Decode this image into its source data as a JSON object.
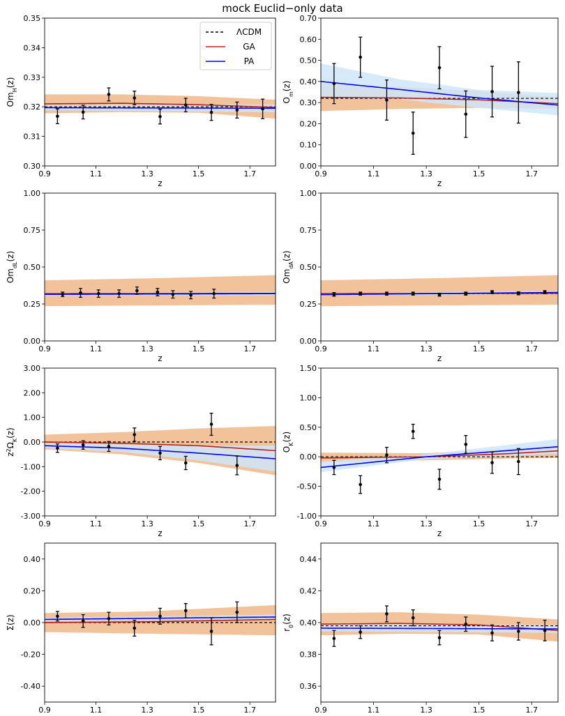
{
  "title": "mock Euclid−only data",
  "legend": {
    "location": "upper-right of first panel",
    "entries": [
      "ΛCDM",
      "GA",
      "PA"
    ]
  },
  "colors": {
    "lcdm": "#000000",
    "ga": "#b22222",
    "pa": "#0000ee",
    "ga_band": "#f0b98a",
    "pa_band": "#cfe6f8",
    "points": "#000000"
  },
  "chart_data": [
    {
      "type": "line",
      "id": "omH",
      "ylabel_html": "Om<tspan baseline-shift=\"sub\" font-size=\"8\">H</tspan>(z)",
      "ylabel": "Om_H(z)",
      "xlabel": "z",
      "xlim": [
        0.9,
        1.8
      ],
      "ylim": [
        0.3,
        0.35
      ],
      "xticks": [
        0.9,
        1.1,
        1.3,
        1.5,
        1.7
      ],
      "xtick_labels": [
        "0.9",
        "1.1",
        "1.3",
        "1.5",
        "1.7"
      ],
      "yticks": [
        0.3,
        0.31,
        0.32,
        0.33,
        0.34,
        0.35
      ],
      "ytick_labels": [
        "0.30",
        "0.31",
        "0.32",
        "0.33",
        "0.34",
        "0.35"
      ],
      "lcdm": 0.32,
      "ga": [
        [
          0.9,
          0.321
        ],
        [
          1.2,
          0.3212
        ],
        [
          1.5,
          0.3207
        ],
        [
          1.8,
          0.3198
        ]
      ],
      "ga_band": [
        [
          0.9,
          0.3178,
          0.3242
        ],
        [
          1.2,
          0.3182,
          0.3242
        ],
        [
          1.5,
          0.318,
          0.3236
        ],
        [
          1.8,
          0.316,
          0.3224
        ]
      ],
      "pa": [
        [
          0.9,
          0.3197
        ],
        [
          1.8,
          0.3195
        ]
      ],
      "pa_band": [
        [
          0.9,
          0.3188,
          0.3206
        ],
        [
          1.8,
          0.3182,
          0.3208
        ]
      ],
      "points": [
        [
          0.95,
          0.3168,
          0.0025
        ],
        [
          1.05,
          0.3182,
          0.0023
        ],
        [
          1.15,
          0.3242,
          0.0022
        ],
        [
          1.25,
          0.323,
          0.0023
        ],
        [
          1.35,
          0.3167,
          0.0025
        ],
        [
          1.45,
          0.3206,
          0.0023
        ],
        [
          1.55,
          0.3181,
          0.0027
        ],
        [
          1.65,
          0.3189,
          0.0027
        ],
        [
          1.75,
          0.3193,
          0.0033
        ]
      ]
    },
    {
      "type": "line",
      "id": "om",
      "ylabel_html": "O<tspan baseline-shift=\"sub\" font-size=\"8\">m</tspan>(z)",
      "ylabel": "O_m(z)",
      "xlabel": "z",
      "xlim": [
        0.9,
        1.8
      ],
      "ylim": [
        0.0,
        0.7
      ],
      "xticks": [
        0.9,
        1.1,
        1.3,
        1.5,
        1.7
      ],
      "xtick_labels": [
        "0.9",
        "1.1",
        "1.3",
        "1.5",
        "1.7"
      ],
      "yticks": [
        0.0,
        0.1,
        0.2,
        0.3,
        0.4,
        0.5,
        0.6,
        0.7
      ],
      "ytick_labels": [
        "0.00",
        "0.10",
        "0.20",
        "0.30",
        "0.40",
        "0.50",
        "0.60",
        "0.70"
      ],
      "lcdm": 0.32,
      "ga": [
        [
          0.9,
          0.325
        ],
        [
          1.2,
          0.322
        ],
        [
          1.5,
          0.313
        ],
        [
          1.8,
          0.295
        ]
      ],
      "ga_band": [
        [
          0.9,
          0.26,
          0.39
        ],
        [
          1.2,
          0.27,
          0.375
        ],
        [
          1.5,
          0.275,
          0.355
        ],
        [
          1.8,
          0.27,
          0.325
        ]
      ],
      "pa": [
        [
          0.9,
          0.4
        ],
        [
          1.2,
          0.362
        ],
        [
          1.5,
          0.322
        ],
        [
          1.8,
          0.288
        ]
      ],
      "pa_band": [
        [
          0.9,
          0.32,
          0.485
        ],
        [
          1.2,
          0.315,
          0.41
        ],
        [
          1.5,
          0.275,
          0.36
        ],
        [
          1.8,
          0.24,
          0.345
        ]
      ],
      "points": [
        [
          0.95,
          0.39,
          0.095
        ],
        [
          1.05,
          0.515,
          0.095
        ],
        [
          1.15,
          0.312,
          0.095
        ],
        [
          1.25,
          0.155,
          0.1
        ],
        [
          1.35,
          0.465,
          0.1
        ],
        [
          1.45,
          0.245,
          0.11
        ],
        [
          1.55,
          0.352,
          0.12
        ],
        [
          1.65,
          0.348,
          0.145
        ]
      ]
    },
    {
      "type": "line",
      "id": "omdL",
      "ylabel_html": "Om<tspan baseline-shift=\"sub\" font-size=\"8\">dL</tspan>(z)",
      "ylabel": "Om_dL(z)",
      "xlabel": "z",
      "xlim": [
        0.9,
        1.8
      ],
      "ylim": [
        0.0,
        1.0
      ],
      "xticks": [
        0.9,
        1.1,
        1.3,
        1.5,
        1.7
      ],
      "xtick_labels": [
        "0.9",
        "1.1",
        "1.3",
        "1.5",
        "1.7"
      ],
      "yticks": [
        0.0,
        0.25,
        0.5,
        0.75,
        1.0
      ],
      "ytick_labels": [
        "0.00",
        "0.25",
        "0.50",
        "0.75",
        "1.00"
      ],
      "lcdm": 0.32,
      "ga": [
        [
          0.9,
          0.32
        ],
        [
          1.8,
          0.322
        ]
      ],
      "ga_band": [
        [
          0.9,
          0.235,
          0.41
        ],
        [
          1.35,
          0.24,
          0.425
        ],
        [
          1.8,
          0.245,
          0.445
        ]
      ],
      "pa": [
        [
          0.9,
          0.315
        ],
        [
          1.8,
          0.32
        ]
      ],
      "pa_band": [
        [
          0.9,
          0.305,
          0.325
        ],
        [
          1.8,
          0.308,
          0.332
        ]
      ],
      "points": [
        [
          0.97,
          0.315,
          0.015
        ],
        [
          1.04,
          0.325,
          0.03
        ],
        [
          1.11,
          0.32,
          0.025
        ],
        [
          1.19,
          0.32,
          0.025
        ],
        [
          1.26,
          0.34,
          0.025
        ],
        [
          1.34,
          0.33,
          0.025
        ],
        [
          1.4,
          0.315,
          0.025
        ],
        [
          1.47,
          0.31,
          0.025
        ],
        [
          1.56,
          0.32,
          0.03
        ]
      ]
    },
    {
      "type": "line",
      "id": "omdA",
      "ylabel_html": "Om<tspan baseline-shift=\"sub\" font-size=\"8\">dA</tspan>(z)",
      "ylabel": "Om_dA(z)",
      "xlabel": "z",
      "xlim": [
        0.9,
        1.8
      ],
      "ylim": [
        0.0,
        1.0
      ],
      "xticks": [
        0.9,
        1.1,
        1.3,
        1.5,
        1.7
      ],
      "xtick_labels": [
        "0.9",
        "1.1",
        "1.3",
        "1.5",
        "1.7"
      ],
      "yticks": [
        0.0,
        0.25,
        0.5,
        0.75,
        1.0
      ],
      "ytick_labels": [
        "0.00",
        "0.25",
        "0.50",
        "0.75",
        "1.00"
      ],
      "lcdm": 0.32,
      "ga": [
        [
          0.9,
          0.32
        ],
        [
          1.8,
          0.322
        ]
      ],
      "ga_band": [
        [
          0.9,
          0.235,
          0.41
        ],
        [
          1.35,
          0.24,
          0.425
        ],
        [
          1.8,
          0.245,
          0.445
        ]
      ],
      "pa": [
        [
          0.9,
          0.313
        ],
        [
          1.8,
          0.328
        ]
      ],
      "pa_band": [
        [
          0.9,
          0.305,
          0.322
        ],
        [
          1.8,
          0.318,
          0.338
        ]
      ],
      "points": [
        [
          0.95,
          0.315,
          0.012
        ],
        [
          1.05,
          0.32,
          0.01
        ],
        [
          1.15,
          0.32,
          0.01
        ],
        [
          1.25,
          0.32,
          0.01
        ],
        [
          1.35,
          0.313,
          0.01
        ],
        [
          1.45,
          0.32,
          0.01
        ],
        [
          1.55,
          0.33,
          0.01
        ],
        [
          1.65,
          0.322,
          0.01
        ],
        [
          1.75,
          0.33,
          0.01
        ]
      ]
    },
    {
      "type": "line",
      "id": "z2ok",
      "ylabel_html": "z<tspan baseline-shift=\"super\" font-size=\"8\">2</tspan>Ω<tspan baseline-shift=\"sub\" font-size=\"8\">K</tspan>(z)",
      "ylabel": "z^2 Ω_K(z)",
      "xlabel": "z",
      "xlim": [
        0.9,
        1.8
      ],
      "ylim": [
        -3.0,
        3.0
      ],
      "xticks": [
        0.9,
        1.1,
        1.3,
        1.5,
        1.7
      ],
      "xtick_labels": [
        "0.9",
        "1.1",
        "1.3",
        "1.5",
        "1.7"
      ],
      "yticks": [
        -3,
        -2,
        -1,
        0,
        1,
        2,
        3
      ],
      "ytick_labels": [
        "-3.00",
        "-2.00",
        "-1.00",
        "0.00",
        "1.00",
        "2.00",
        "3.00"
      ],
      "lcdm": 0.0,
      "ga": [
        [
          0.9,
          0.0
        ],
        [
          1.2,
          -0.05
        ],
        [
          1.5,
          -0.15
        ],
        [
          1.8,
          -0.35
        ]
      ],
      "ga_band": [
        [
          0.9,
          -0.3,
          0.3
        ],
        [
          1.2,
          -0.5,
          0.4
        ],
        [
          1.5,
          -0.85,
          0.55
        ],
        [
          1.8,
          -1.35,
          0.65
        ]
      ],
      "pa": [
        [
          0.9,
          -0.15
        ],
        [
          1.2,
          -0.25
        ],
        [
          1.5,
          -0.45
        ],
        [
          1.8,
          -0.68
        ]
      ],
      "pa_band": [
        [
          0.9,
          -0.25,
          -0.05
        ],
        [
          1.2,
          -0.4,
          -0.1
        ],
        [
          1.5,
          -0.75,
          -0.15
        ],
        [
          1.8,
          -1.2,
          -0.15
        ]
      ],
      "points": [
        [
          0.95,
          -0.25,
          0.17
        ],
        [
          1.05,
          -0.12,
          0.17
        ],
        [
          1.15,
          -0.18,
          0.2
        ],
        [
          1.25,
          0.3,
          0.27
        ],
        [
          1.35,
          -0.45,
          0.27
        ],
        [
          1.45,
          -0.85,
          0.27
        ],
        [
          1.55,
          0.72,
          0.45
        ],
        [
          1.65,
          -0.95,
          0.38
        ]
      ]
    },
    {
      "type": "line",
      "id": "ok",
      "ylabel_html": "O<tspan baseline-shift=\"sub\" font-size=\"8\">K</tspan>(z)",
      "ylabel": "O_K(z)",
      "xlabel": "z",
      "xlim": [
        0.9,
        1.8
      ],
      "ylim": [
        -1.0,
        1.5
      ],
      "xticks": [
        0.9,
        1.1,
        1.3,
        1.5,
        1.7
      ],
      "xtick_labels": [
        "0.9",
        "1.1",
        "1.3",
        "1.5",
        "1.7"
      ],
      "yticks": [
        -1.0,
        -0.5,
        0.0,
        0.5,
        1.0,
        1.5
      ],
      "ytick_labels": [
        "-1.00",
        "-0.50",
        "0.00",
        "0.50",
        "1.00",
        "1.50"
      ],
      "lcdm": 0.0,
      "ga": [
        [
          0.9,
          -0.02
        ],
        [
          1.3,
          0.0
        ],
        [
          1.6,
          0.05
        ],
        [
          1.8,
          0.1
        ]
      ],
      "ga_band": [
        [
          0.9,
          -0.1,
          0.07
        ],
        [
          1.3,
          -0.06,
          0.06
        ],
        [
          1.6,
          -0.03,
          0.13
        ],
        [
          1.8,
          -0.02,
          0.19
        ]
      ],
      "pa": [
        [
          0.9,
          -0.18
        ],
        [
          1.3,
          0.0
        ],
        [
          1.8,
          0.17
        ]
      ],
      "pa_band": [
        [
          0.9,
          -0.26,
          -0.08
        ],
        [
          1.3,
          -0.04,
          0.04
        ],
        [
          1.8,
          0.05,
          0.3
        ]
      ],
      "points": [
        [
          0.95,
          -0.18,
          0.12
        ],
        [
          1.05,
          -0.47,
          0.15
        ],
        [
          1.15,
          0.03,
          0.13
        ],
        [
          1.25,
          0.43,
          0.12
        ],
        [
          1.35,
          -0.38,
          0.17
        ],
        [
          1.45,
          0.21,
          0.15
        ],
        [
          1.55,
          -0.1,
          0.18
        ],
        [
          1.65,
          -0.08,
          0.22
        ]
      ]
    },
    {
      "type": "line",
      "id": "sigma",
      "ylabel_html": "Σ(z)",
      "ylabel": "Σ(z)",
      "xlabel": "z",
      "xlim": [
        0.9,
        1.8
      ],
      "ylim": [
        -0.5,
        0.5
      ],
      "xticks": [
        0.9,
        1.1,
        1.3,
        1.5,
        1.7
      ],
      "xtick_labels": [
        "0.9",
        "1.1",
        "1.3",
        "1.5",
        "1.7"
      ],
      "yticks": [
        -0.4,
        -0.2,
        0.0,
        0.2,
        0.4
      ],
      "ytick_labels": [
        "-0.40",
        "-0.20",
        "0.00",
        "0.20",
        "0.40"
      ],
      "lcdm": 0.0,
      "ga": [
        [
          0.9,
          0.0
        ],
        [
          1.3,
          0.005
        ],
        [
          1.8,
          0.02
        ]
      ],
      "ga_band": [
        [
          0.9,
          -0.06,
          0.06
        ],
        [
          1.3,
          -0.07,
          0.07
        ],
        [
          1.8,
          -0.08,
          0.11
        ]
      ],
      "pa": [
        [
          0.9,
          0.02
        ],
        [
          1.8,
          0.035
        ]
      ],
      "pa_band": [
        [
          0.9,
          0.01,
          0.03
        ],
        [
          1.8,
          0.02,
          0.05
        ]
      ],
      "points": [
        [
          0.95,
          0.04,
          0.03
        ],
        [
          1.05,
          0.01,
          0.04
        ],
        [
          1.15,
          0.025,
          0.04
        ],
        [
          1.25,
          -0.035,
          0.05
        ],
        [
          1.35,
          0.04,
          0.05
        ],
        [
          1.45,
          0.075,
          0.045
        ],
        [
          1.55,
          -0.055,
          0.085
        ],
        [
          1.65,
          0.065,
          0.065
        ]
      ]
    },
    {
      "type": "line",
      "id": "r0",
      "ylabel_html": "r<tspan baseline-shift=\"sub\" font-size=\"8\">0</tspan>(z)",
      "ylabel": "r_0(z)",
      "xlabel": "z",
      "xlim": [
        0.9,
        1.8
      ],
      "ylim": [
        0.35,
        0.45
      ],
      "xticks": [
        0.9,
        1.1,
        1.3,
        1.5,
        1.7
      ],
      "xtick_labels": [
        "0.9",
        "1.1",
        "1.3",
        "1.5",
        "1.7"
      ],
      "yticks": [
        0.36,
        0.38,
        0.4,
        0.42,
        0.44
      ],
      "ytick_labels": [
        "0.36",
        "0.38",
        "0.40",
        "0.42",
        "0.44"
      ],
      "lcdm": 0.398,
      "ga": [
        [
          0.9,
          0.399
        ],
        [
          1.2,
          0.3995
        ],
        [
          1.5,
          0.3985
        ],
        [
          1.8,
          0.395
        ]
      ],
      "ga_band": [
        [
          0.9,
          0.392,
          0.406
        ],
        [
          1.2,
          0.393,
          0.4065
        ],
        [
          1.5,
          0.3925,
          0.405
        ],
        [
          1.8,
          0.388,
          0.402
        ]
      ],
      "pa": [
        [
          0.9,
          0.3965
        ],
        [
          1.8,
          0.396
        ]
      ],
      "pa_band": [
        [
          0.9,
          0.3945,
          0.399
        ],
        [
          1.8,
          0.3935,
          0.3985
        ]
      ],
      "points": [
        [
          0.95,
          0.39,
          0.005
        ],
        [
          1.05,
          0.394,
          0.004
        ],
        [
          1.15,
          0.4055,
          0.005
        ],
        [
          1.25,
          0.403,
          0.005
        ],
        [
          1.35,
          0.3905,
          0.0045
        ],
        [
          1.45,
          0.399,
          0.0045
        ],
        [
          1.55,
          0.3935,
          0.005
        ],
        [
          1.65,
          0.3945,
          0.0055
        ],
        [
          1.75,
          0.395,
          0.0065
        ]
      ]
    }
  ]
}
